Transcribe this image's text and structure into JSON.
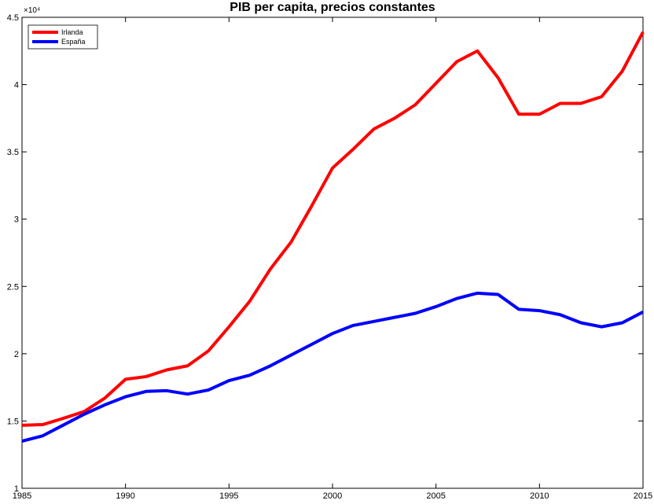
{
  "chart_data": {
    "type": "line",
    "title": "PIB per capita, precios constantes",
    "y_multiplier": "×10⁴",
    "x": [
      1985,
      1986,
      1987,
      1988,
      1989,
      1990,
      1991,
      1992,
      1993,
      1994,
      1995,
      1996,
      1997,
      1998,
      1999,
      2000,
      2001,
      2002,
      2003,
      2004,
      2005,
      2006,
      2007,
      2008,
      2009,
      2010,
      2011,
      2012,
      2013,
      2014,
      2015
    ],
    "series": [
      {
        "name": "Irlanda",
        "color": "#ff0000",
        "values": [
          1.468,
          1.473,
          1.52,
          1.57,
          1.67,
          1.81,
          1.83,
          1.88,
          1.91,
          2.02,
          2.2,
          2.39,
          2.63,
          2.83,
          3.1,
          3.38,
          3.52,
          3.67,
          3.75,
          3.85,
          4.01,
          4.17,
          4.25,
          4.05,
          3.78,
          3.78,
          3.86,
          3.86,
          3.91,
          4.1,
          4.39
        ]
      },
      {
        "name": "España",
        "color": "#0000ff",
        "values": [
          1.35,
          1.39,
          1.47,
          1.55,
          1.62,
          1.68,
          1.72,
          1.725,
          1.7,
          1.73,
          1.8,
          1.84,
          1.91,
          1.99,
          2.07,
          2.15,
          2.21,
          2.24,
          2.27,
          2.3,
          2.35,
          2.41,
          2.45,
          2.44,
          2.33,
          2.32,
          2.29,
          2.23,
          2.2,
          2.23,
          2.31
        ]
      }
    ],
    "xlim": [
      1985,
      2015
    ],
    "xticks": [
      1985,
      1990,
      1995,
      2000,
      2005,
      2010,
      2015
    ],
    "ylim": [
      1,
      4.5
    ],
    "yticks": [
      1,
      1.5,
      2,
      2.5,
      3,
      3.5,
      4,
      4.5
    ],
    "legend": "upper left",
    "grid": false
  }
}
